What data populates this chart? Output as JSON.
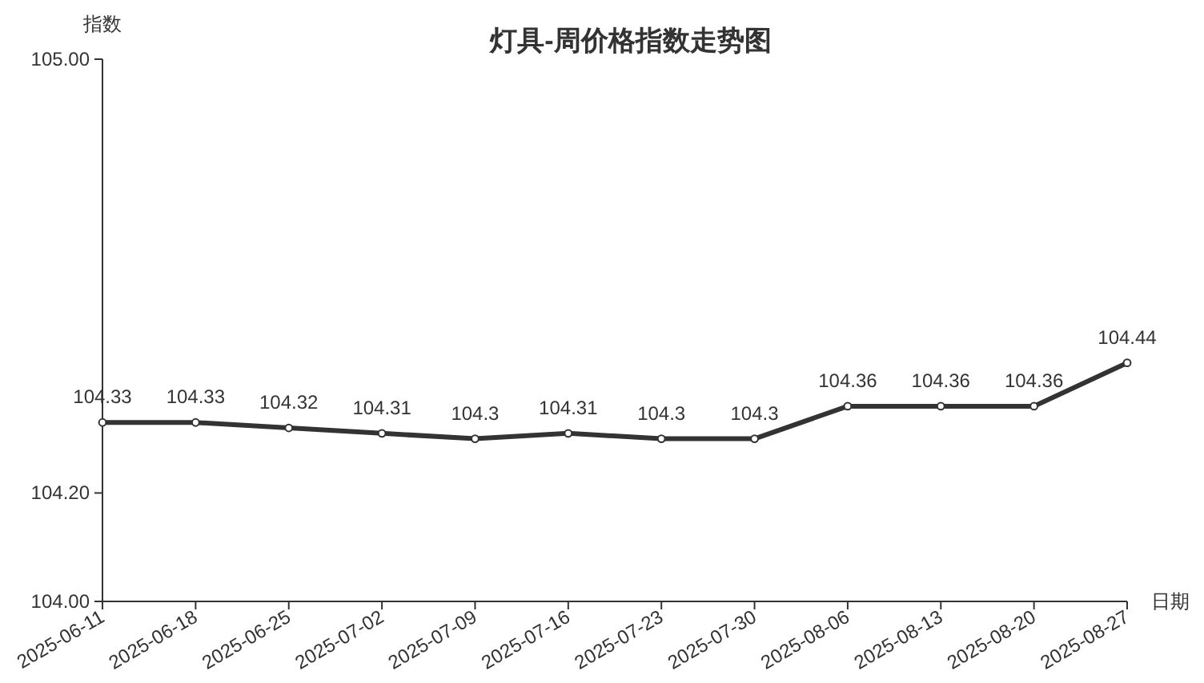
{
  "chart_data": {
    "type": "line",
    "title": "灯具-周价格指数走势图",
    "xlabel": "日期",
    "ylabel": "指数",
    "categories": [
      "2025-06-11",
      "2025-06-18",
      "2025-06-25",
      "2025-07-02",
      "2025-07-09",
      "2025-07-16",
      "2025-07-23",
      "2025-07-30",
      "2025-08-06",
      "2025-08-13",
      "2025-08-20",
      "2025-08-27"
    ],
    "series": [
      {
        "color": "#333333",
        "values": [
          104.33,
          104.33,
          104.32,
          104.31,
          104.3,
          104.31,
          104.3,
          104.3,
          104.36,
          104.36,
          104.36,
          104.44
        ]
      }
    ],
    "ylim": [
      104,
      105
    ],
    "yticks": [
      {
        "value": 104,
        "label": "104.00"
      },
      {
        "value": 104.2,
        "label": "104.20"
      },
      {
        "value": 105,
        "label": "105.00"
      }
    ],
    "data_labels": true,
    "marker": "circle",
    "line_style": "solid"
  }
}
